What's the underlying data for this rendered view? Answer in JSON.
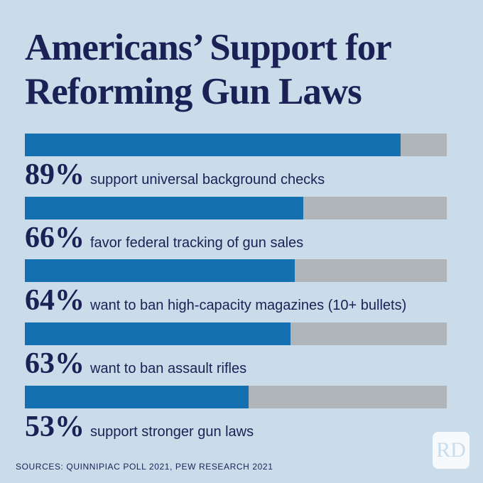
{
  "chart_data": {
    "type": "bar",
    "orientation": "horizontal",
    "title": "Americans’ Support for Reforming Gun Laws",
    "categories": [
      "support universal background checks",
      "favor federal tracking of gun sales",
      "want to ban high-capacity magazines (10+ bullets)",
      "want to ban assault rifles",
      "support stronger gun laws"
    ],
    "values": [
      89,
      66,
      64,
      63,
      53
    ],
    "value_labels": [
      "89%",
      "66%",
      "64%",
      "63%",
      "53%"
    ],
    "xlim": [
      0,
      100
    ],
    "color": "#1570b2",
    "track_color": "#b0b5b9",
    "source": "SOURCES: QUINNIPIAC POLL 2021, PEW RESEARCH 2021",
    "logo": "RD"
  }
}
